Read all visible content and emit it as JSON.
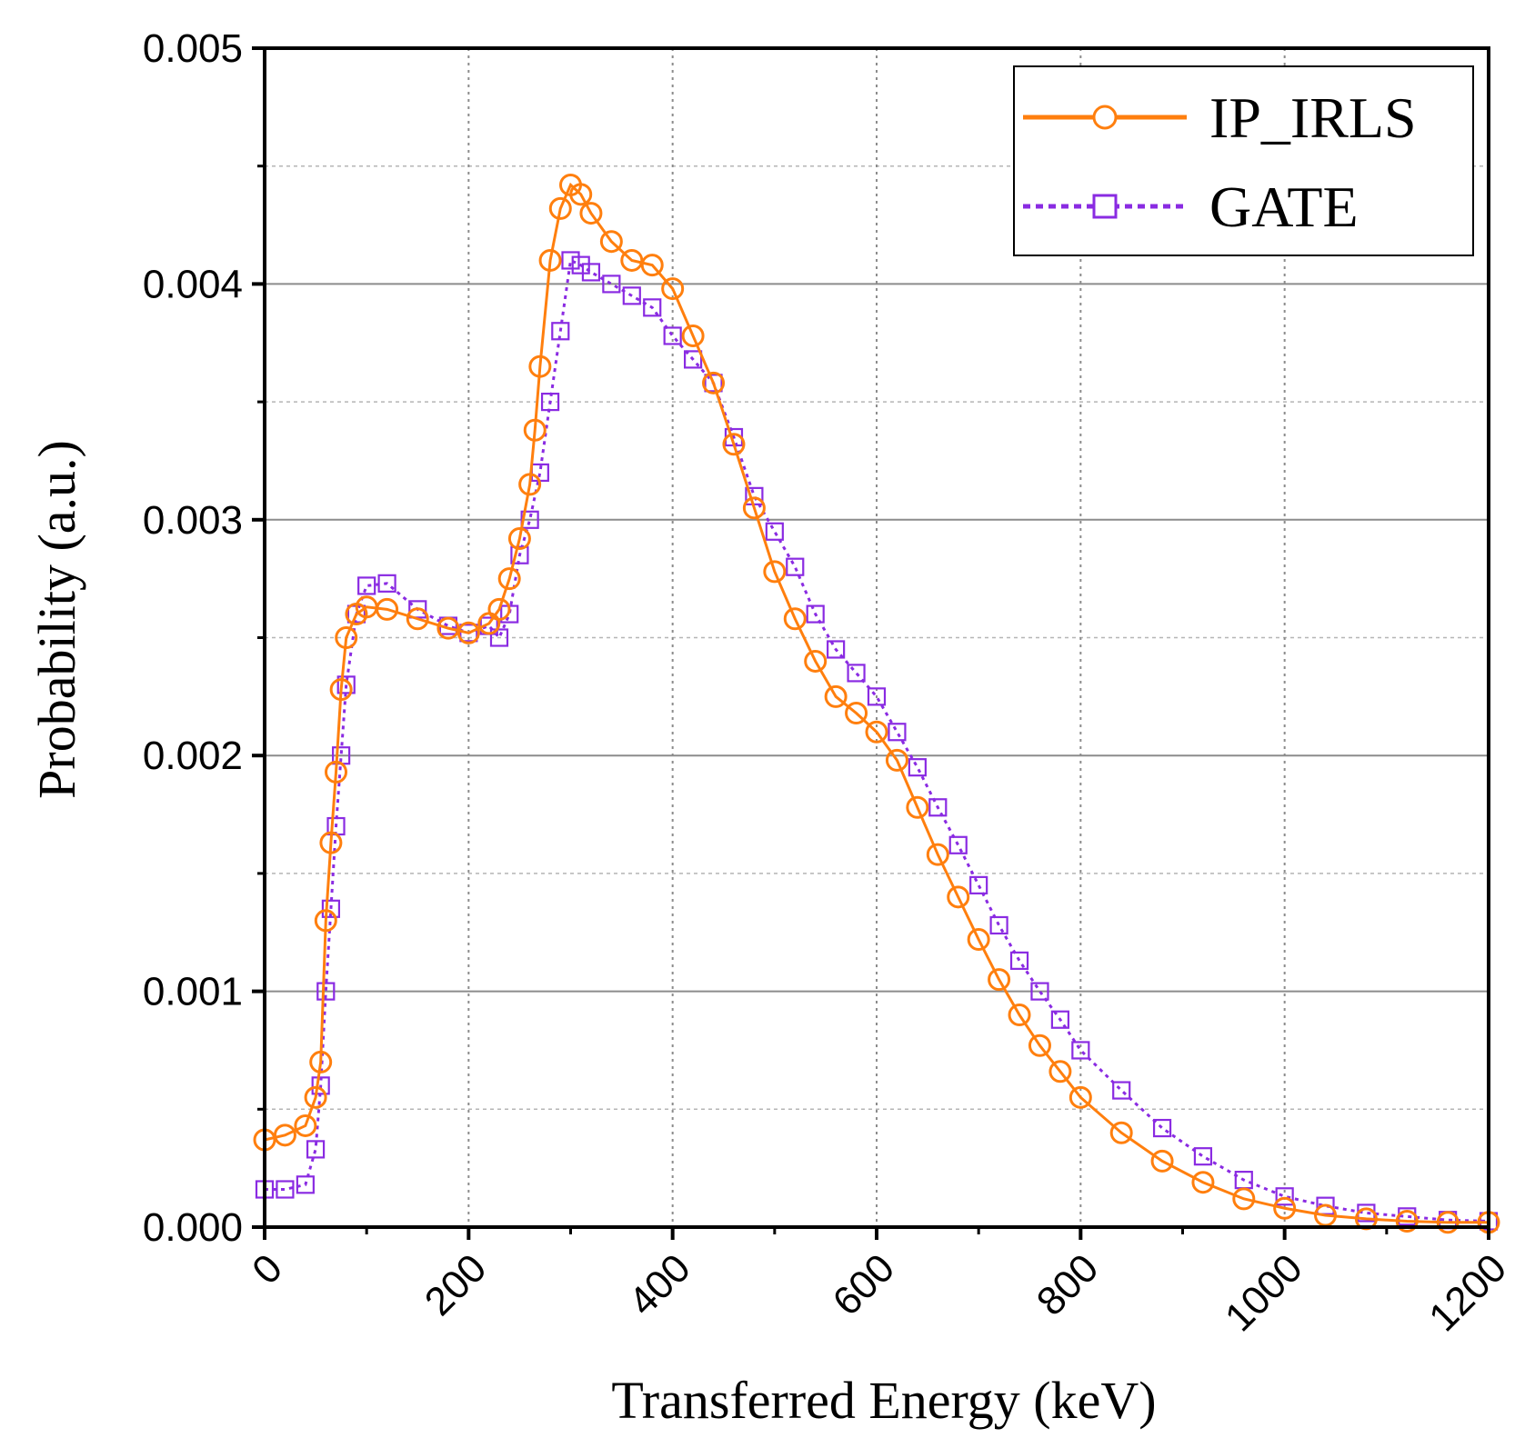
{
  "chart_data": {
    "type": "scatter",
    "title": "",
    "xlabel": "Transferred Energy (keV)",
    "ylabel": "Probability (a.u.)",
    "xlim": [
      0,
      1200
    ],
    "ylim": [
      0,
      0.005
    ],
    "x_ticks": [
      0,
      200,
      400,
      600,
      800,
      1000,
      1200
    ],
    "x_tick_labels": [
      "0",
      "200",
      "400",
      "600",
      "800",
      "1000",
      "1200"
    ],
    "y_ticks": [
      0,
      0.001,
      0.002,
      0.003,
      0.004,
      0.005
    ],
    "y_tick_labels": [
      "0.000",
      "0.001",
      "0.002",
      "0.003",
      "0.004",
      "0.005"
    ],
    "grid": true,
    "legend_position": "top-right",
    "series": [
      {
        "name": "IP_IRLS",
        "marker": "circle",
        "line": "solid",
        "color": "#ff7f0e",
        "x": [
          0,
          20,
          40,
          50,
          55,
          60,
          65,
          70,
          75,
          80,
          90,
          100,
          120,
          150,
          180,
          200,
          220,
          230,
          240,
          250,
          260,
          265,
          270,
          280,
          290,
          300,
          310,
          320,
          340,
          360,
          380,
          400,
          420,
          440,
          460,
          480,
          500,
          520,
          540,
          560,
          580,
          600,
          620,
          640,
          660,
          680,
          700,
          720,
          740,
          760,
          780,
          800,
          840,
          880,
          920,
          960,
          1000,
          1040,
          1080,
          1120,
          1160,
          1200
        ],
        "y": [
          0.00037,
          0.00039,
          0.00043,
          0.00055,
          0.0007,
          0.0013,
          0.00163,
          0.00193,
          0.00228,
          0.0025,
          0.0026,
          0.00263,
          0.00262,
          0.00258,
          0.00254,
          0.00252,
          0.00256,
          0.00262,
          0.00275,
          0.00292,
          0.00315,
          0.00338,
          0.00365,
          0.0041,
          0.00432,
          0.00442,
          0.00438,
          0.0043,
          0.00418,
          0.0041,
          0.00408,
          0.00398,
          0.00378,
          0.00358,
          0.00332,
          0.00305,
          0.00278,
          0.00258,
          0.0024,
          0.00225,
          0.00218,
          0.0021,
          0.00198,
          0.00178,
          0.00158,
          0.0014,
          0.00122,
          0.00105,
          0.0009,
          0.00077,
          0.00066,
          0.00055,
          0.0004,
          0.00028,
          0.00019,
          0.00012,
          8e-05,
          5e-05,
          3.5e-05,
          2.5e-05,
          2e-05,
          2e-05
        ]
      },
      {
        "name": "GATE",
        "marker": "square",
        "line": "dotted",
        "color": "#8a2be2",
        "x": [
          0,
          20,
          40,
          50,
          55,
          60,
          65,
          70,
          75,
          80,
          90,
          100,
          120,
          150,
          180,
          200,
          220,
          230,
          240,
          250,
          260,
          270,
          280,
          290,
          300,
          310,
          320,
          340,
          360,
          380,
          400,
          420,
          440,
          460,
          480,
          500,
          520,
          540,
          560,
          580,
          600,
          620,
          640,
          660,
          680,
          700,
          720,
          740,
          760,
          780,
          800,
          840,
          880,
          920,
          960,
          1000,
          1040,
          1080,
          1120,
          1160,
          1200
        ],
        "y": [
          0.00016,
          0.00016,
          0.00018,
          0.00033,
          0.0006,
          0.001,
          0.00135,
          0.0017,
          0.002,
          0.0023,
          0.0026,
          0.00272,
          0.00273,
          0.00262,
          0.00255,
          0.00252,
          0.00255,
          0.0025,
          0.0026,
          0.00285,
          0.003,
          0.0032,
          0.0035,
          0.0038,
          0.0041,
          0.00408,
          0.00405,
          0.004,
          0.00395,
          0.0039,
          0.00378,
          0.00368,
          0.00358,
          0.00335,
          0.0031,
          0.00295,
          0.0028,
          0.0026,
          0.00245,
          0.00235,
          0.00225,
          0.0021,
          0.00195,
          0.00178,
          0.00162,
          0.00145,
          0.00128,
          0.00113,
          0.001,
          0.00088,
          0.00075,
          0.00058,
          0.00042,
          0.0003,
          0.0002,
          0.00013,
          9e-05,
          6e-05,
          4.5e-05,
          3e-05,
          2.5e-05
        ]
      }
    ]
  }
}
